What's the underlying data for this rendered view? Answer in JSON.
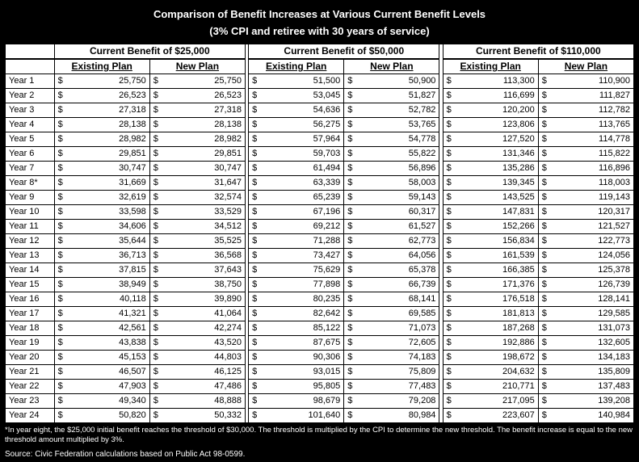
{
  "title": "Comparison of Benefit Increases at Various Current Benefit Levels",
  "subtitle": "(3% CPI and retiree with 30 years of service)",
  "groups": [
    "Current Benefit of $25,000",
    "Current Benefit of $50,000",
    "Current Benefit of $110,000"
  ],
  "plan_labels": {
    "existing": "Existing Plan",
    "new": "New Plan"
  },
  "rows": [
    {
      "year": "Year 1",
      "b25_ex": "25,750",
      "b25_new": "25,750",
      "b50_ex": "51,500",
      "b50_new": "50,900",
      "b110_ex": "113,300",
      "b110_new": "110,900"
    },
    {
      "year": "Year 2",
      "b25_ex": "26,523",
      "b25_new": "26,523",
      "b50_ex": "53,045",
      "b50_new": "51,827",
      "b110_ex": "116,699",
      "b110_new": "111,827"
    },
    {
      "year": "Year 3",
      "b25_ex": "27,318",
      "b25_new": "27,318",
      "b50_ex": "54,636",
      "b50_new": "52,782",
      "b110_ex": "120,200",
      "b110_new": "112,782"
    },
    {
      "year": "Year 4",
      "b25_ex": "28,138",
      "b25_new": "28,138",
      "b50_ex": "56,275",
      "b50_new": "53,765",
      "b110_ex": "123,806",
      "b110_new": "113,765"
    },
    {
      "year": "Year 5",
      "b25_ex": "28,982",
      "b25_new": "28,982",
      "b50_ex": "57,964",
      "b50_new": "54,778",
      "b110_ex": "127,520",
      "b110_new": "114,778"
    },
    {
      "year": "Year 6",
      "b25_ex": "29,851",
      "b25_new": "29,851",
      "b50_ex": "59,703",
      "b50_new": "55,822",
      "b110_ex": "131,346",
      "b110_new": "115,822"
    },
    {
      "year": "Year 7",
      "b25_ex": "30,747",
      "b25_new": "30,747",
      "b50_ex": "61,494",
      "b50_new": "56,896",
      "b110_ex": "135,286",
      "b110_new": "116,896"
    },
    {
      "year": "Year 8*",
      "b25_ex": "31,669",
      "b25_new": "31,647",
      "b50_ex": "63,339",
      "b50_new": "58,003",
      "b110_ex": "139,345",
      "b110_new": "118,003"
    },
    {
      "year": "Year 9",
      "b25_ex": "32,619",
      "b25_new": "32,574",
      "b50_ex": "65,239",
      "b50_new": "59,143",
      "b110_ex": "143,525",
      "b110_new": "119,143"
    },
    {
      "year": "Year 10",
      "b25_ex": "33,598",
      "b25_new": "33,529",
      "b50_ex": "67,196",
      "b50_new": "60,317",
      "b110_ex": "147,831",
      "b110_new": "120,317"
    },
    {
      "year": "Year 11",
      "b25_ex": "34,606",
      "b25_new": "34,512",
      "b50_ex": "69,212",
      "b50_new": "61,527",
      "b110_ex": "152,266",
      "b110_new": "121,527"
    },
    {
      "year": "Year 12",
      "b25_ex": "35,644",
      "b25_new": "35,525",
      "b50_ex": "71,288",
      "b50_new": "62,773",
      "b110_ex": "156,834",
      "b110_new": "122,773"
    },
    {
      "year": "Year 13",
      "b25_ex": "36,713",
      "b25_new": "36,568",
      "b50_ex": "73,427",
      "b50_new": "64,056",
      "b110_ex": "161,539",
      "b110_new": "124,056"
    },
    {
      "year": "Year 14",
      "b25_ex": "37,815",
      "b25_new": "37,643",
      "b50_ex": "75,629",
      "b50_new": "65,378",
      "b110_ex": "166,385",
      "b110_new": "125,378"
    },
    {
      "year": "Year 15",
      "b25_ex": "38,949",
      "b25_new": "38,750",
      "b50_ex": "77,898",
      "b50_new": "66,739",
      "b110_ex": "171,376",
      "b110_new": "126,739"
    },
    {
      "year": "Year 16",
      "b25_ex": "40,118",
      "b25_new": "39,890",
      "b50_ex": "80,235",
      "b50_new": "68,141",
      "b110_ex": "176,518",
      "b110_new": "128,141"
    },
    {
      "year": "Year 17",
      "b25_ex": "41,321",
      "b25_new": "41,064",
      "b50_ex": "82,642",
      "b50_new": "69,585",
      "b110_ex": "181,813",
      "b110_new": "129,585"
    },
    {
      "year": "Year 18",
      "b25_ex": "42,561",
      "b25_new": "42,274",
      "b50_ex": "85,122",
      "b50_new": "71,073",
      "b110_ex": "187,268",
      "b110_new": "131,073"
    },
    {
      "year": "Year 19",
      "b25_ex": "43,838",
      "b25_new": "43,520",
      "b50_ex": "87,675",
      "b50_new": "72,605",
      "b110_ex": "192,886",
      "b110_new": "132,605"
    },
    {
      "year": "Year 20",
      "b25_ex": "45,153",
      "b25_new": "44,803",
      "b50_ex": "90,306",
      "b50_new": "74,183",
      "b110_ex": "198,672",
      "b110_new": "134,183"
    },
    {
      "year": "Year 21",
      "b25_ex": "46,507",
      "b25_new": "46,125",
      "b50_ex": "93,015",
      "b50_new": "75,809",
      "b110_ex": "204,632",
      "b110_new": "135,809"
    },
    {
      "year": "Year 22",
      "b25_ex": "47,903",
      "b25_new": "47,486",
      "b50_ex": "95,805",
      "b50_new": "77,483",
      "b110_ex": "210,771",
      "b110_new": "137,483"
    },
    {
      "year": "Year 23",
      "b25_ex": "49,340",
      "b25_new": "48,888",
      "b50_ex": "98,679",
      "b50_new": "79,208",
      "b110_ex": "217,095",
      "b110_new": "139,208"
    },
    {
      "year": "Year 24",
      "b25_ex": "50,820",
      "b25_new": "50,332",
      "b50_ex": "101,640",
      "b50_new": "80,984",
      "b110_ex": "223,607",
      "b110_new": "140,984"
    }
  ],
  "footnote": "*In year eight, the $25,000 initial benefit reaches the threshold of $30,000. The threshold is multiplied by the CPI to determine the new threshold. The benefit increase is equal to the new threshold amount multiplied by 3%.",
  "source": "Source: Civic Federation calculations based on Public Act 98-0599.",
  "style": {
    "background": "#000000",
    "table_bg": "#ffffff",
    "text_color": "#ffffff",
    "cell_text": "#000000",
    "border_color": "#000000",
    "title_fontsize": 13,
    "cell_fontsize": 11,
    "footnote_fontsize": 9.5
  }
}
